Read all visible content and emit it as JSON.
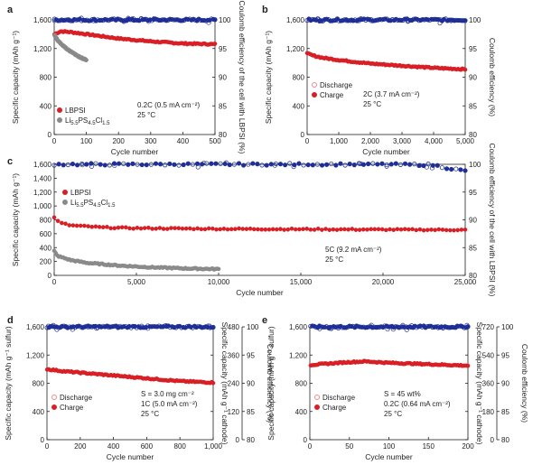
{
  "chart_data": [
    {
      "panel": "a",
      "type": "scatter",
      "xlabel": "Cycle number",
      "ylabel": "Specific capacity (mAh g⁻¹)",
      "y2label": "Coulomb efficiency of the cell with LBPSI (%)",
      "xlim": [
        0,
        500
      ],
      "ylim": [
        0,
        1600
      ],
      "y2lim": [
        80,
        100
      ],
      "xticks": [
        "0",
        "100",
        "200",
        "300",
        "400",
        "500"
      ],
      "yticks": [
        "0",
        "400",
        "800",
        "1,200",
        "1,600"
      ],
      "y2ticks": [
        "80",
        "85",
        "90",
        "95",
        "100"
      ],
      "legend": [
        "LBPSI",
        "Li5.5PS4.5Cl1.5"
      ],
      "annotations": [
        "0.2C (0.5 mA cm⁻²)",
        "25 °C"
      ],
      "series": [
        {
          "name": "LBPSI",
          "axis": "left",
          "color": "#d91f26",
          "x": [
            1,
            20,
            50,
            100,
            200,
            300,
            400,
            500
          ],
          "y": [
            1400,
            1440,
            1430,
            1400,
            1340,
            1300,
            1270,
            1260
          ]
        },
        {
          "name": "Li5.5PS4.5Cl1.5",
          "axis": "left",
          "color": "#8a8a8a",
          "x": [
            1,
            10,
            30,
            50,
            75,
            100
          ],
          "y": [
            1390,
            1320,
            1230,
            1160,
            1090,
            1040
          ]
        },
        {
          "name": "Coulomb efficiency",
          "axis": "right",
          "color": "#1f2f96",
          "x": [
            1,
            100,
            200,
            300,
            400,
            500
          ],
          "y": [
            100,
            100,
            100,
            100,
            100,
            100
          ]
        }
      ]
    },
    {
      "panel": "b",
      "type": "scatter",
      "xlabel": "Cycle number",
      "ylabel": "Specific capacity (mAh g⁻¹)",
      "y2label": "Coulomb efficiency (%)",
      "xlim": [
        0,
        5000
      ],
      "ylim": [
        0,
        1600
      ],
      "y2lim": [
        80,
        100
      ],
      "xticks": [
        "0",
        "1,000",
        "2,000",
        "3,000",
        "4,000",
        "5,000"
      ],
      "yticks": [
        "0",
        "400",
        "800",
        "1,200",
        "1,600"
      ],
      "y2ticks": [
        "80",
        "85",
        "90",
        "95",
        "100"
      ],
      "legend": [
        "Discharge",
        "Charge"
      ],
      "annotations": [
        "2C (3.7 mA cm⁻²)",
        "25 °C"
      ],
      "series": [
        {
          "name": "Charge",
          "axis": "left",
          "color": "#d91f26",
          "x": [
            1,
            200,
            500,
            1000,
            2000,
            3000,
            4000,
            5000
          ],
          "y": [
            1130,
            1100,
            1070,
            1040,
            990,
            960,
            930,
            910
          ]
        },
        {
          "name": "Coulomb efficiency",
          "axis": "right",
          "color": "#1f2f96",
          "x": [
            1,
            1000,
            2000,
            3000,
            4000,
            5000
          ],
          "y": [
            100,
            100,
            100,
            100,
            100,
            100
          ]
        }
      ]
    },
    {
      "panel": "c",
      "type": "scatter",
      "xlabel": "Cycle number",
      "ylabel": "Specific capacity (mAh g⁻¹)",
      "y2label": "Coulomb efficiency of the cell with LBPSI (%)",
      "xlim": [
        0,
        25000
      ],
      "ylim": [
        0,
        1600
      ],
      "y2lim": [
        80,
        100
      ],
      "xticks": [
        "0",
        "5,000",
        "10,000",
        "15,000",
        "20,000",
        "25,000"
      ],
      "yticks": [
        "0",
        "200",
        "400",
        "600",
        "800",
        "1,000",
        "1,200",
        "1,400",
        "1,600"
      ],
      "y2ticks": [
        "80",
        "85",
        "90",
        "95",
        "100"
      ],
      "legend": [
        "LBPSI",
        "Li5.5PS4.5Cl1.5"
      ],
      "annotations": [
        "5C (9.2 mA cm⁻²)",
        "25 °C"
      ],
      "series": [
        {
          "name": "LBPSI",
          "axis": "left",
          "color": "#d91f26",
          "x": [
            1,
            300,
            1000,
            3000,
            5000,
            10000,
            15000,
            20000,
            25000
          ],
          "y": [
            840,
            760,
            720,
            690,
            680,
            670,
            665,
            660,
            655
          ]
        },
        {
          "name": "Li5.5PS4.5Cl1.5",
          "axis": "left",
          "color": "#8a8a8a",
          "x": [
            1,
            200,
            1000,
            2000,
            4000,
            6000,
            8000,
            10000
          ],
          "y": [
            350,
            280,
            220,
            180,
            140,
            115,
            100,
            90
          ]
        },
        {
          "name": "Coulomb efficiency",
          "axis": "right",
          "color": "#1f2f96",
          "x": [
            1,
            5000,
            10000,
            15000,
            20000,
            23000,
            24000,
            25000
          ],
          "y": [
            100,
            100,
            100,
            100,
            100,
            99.9,
            99.3,
            98.8
          ]
        }
      ]
    },
    {
      "panel": "d",
      "type": "scatter",
      "xlabel": "Cycle number",
      "ylabel": "Specific capacity (mAh g⁻¹ sulfur)",
      "y2label_left": "Specific capacity (mAh g⁻¹ cathode)",
      "y2label": "Coulomb efficiency (%)",
      "xlim": [
        0,
        1000
      ],
      "ylim": [
        0,
        1600
      ],
      "y2lim": [
        80,
        100
      ],
      "xticks": [
        "0",
        "200",
        "400",
        "600",
        "800",
        "1,000"
      ],
      "yticks": [
        "0",
        "400",
        "800",
        "1,200",
        "1,600"
      ],
      "ymidticks": [
        "0",
        "120",
        "240",
        "360",
        "480"
      ],
      "y2ticks": [
        "80",
        "85",
        "90",
        "95",
        "100"
      ],
      "legend": [
        "Discharge",
        "Charge"
      ],
      "annotations": [
        "S = 3.0 mg cm⁻²",
        "1C (5.0 mA cm⁻²)",
        "25 °C"
      ],
      "series": [
        {
          "name": "Charge",
          "axis": "left",
          "color": "#d91f26",
          "x": [
            1,
            100,
            200,
            400,
            600,
            800,
            1000
          ],
          "y": [
            1000,
            970,
            950,
            910,
            870,
            830,
            810
          ]
        },
        {
          "name": "Coulomb efficiency",
          "axis": "right",
          "color": "#1f2f96",
          "x": [
            1,
            200,
            400,
            600,
            800,
            1000
          ],
          "y": [
            100,
            100,
            100,
            100,
            100,
            100
          ]
        }
      ]
    },
    {
      "panel": "e",
      "type": "scatter",
      "xlabel": "Cycle number",
      "ylabel": "Specific capacity (mAh g⁻¹ sulfur)",
      "y2label_left": "Specific capacity (mAh g⁻¹ cathode)",
      "y2label": "Coulomb efficiency (%)",
      "xlim": [
        0,
        200
      ],
      "ylim": [
        0,
        1600
      ],
      "y2lim": [
        80,
        100
      ],
      "xticks": [
        "0",
        "50",
        "100",
        "150",
        "200"
      ],
      "yticks": [
        "0",
        "400",
        "800",
        "1,200",
        "1,600"
      ],
      "ymidticks": [
        "0",
        "180",
        "360",
        "540",
        "720"
      ],
      "y2ticks": [
        "80",
        "85",
        "90",
        "95",
        "100"
      ],
      "legend": [
        "Discharge",
        "Charge"
      ],
      "annotations": [
        "S = 45 wt%",
        "0.2C (0.64 mA cm⁻²)",
        "25 °C"
      ],
      "series": [
        {
          "name": "Charge",
          "axis": "left",
          "color": "#d91f26",
          "x": [
            1,
            25,
            50,
            70,
            100,
            150,
            200
          ],
          "y": [
            1060,
            1080,
            1100,
            1110,
            1090,
            1070,
            1050
          ]
        },
        {
          "name": "Coulomb efficiency",
          "axis": "right",
          "color": "#1f2f96",
          "x": [
            1,
            50,
            100,
            150,
            200
          ],
          "y": [
            100,
            100,
            100,
            100,
            100
          ]
        }
      ]
    }
  ]
}
